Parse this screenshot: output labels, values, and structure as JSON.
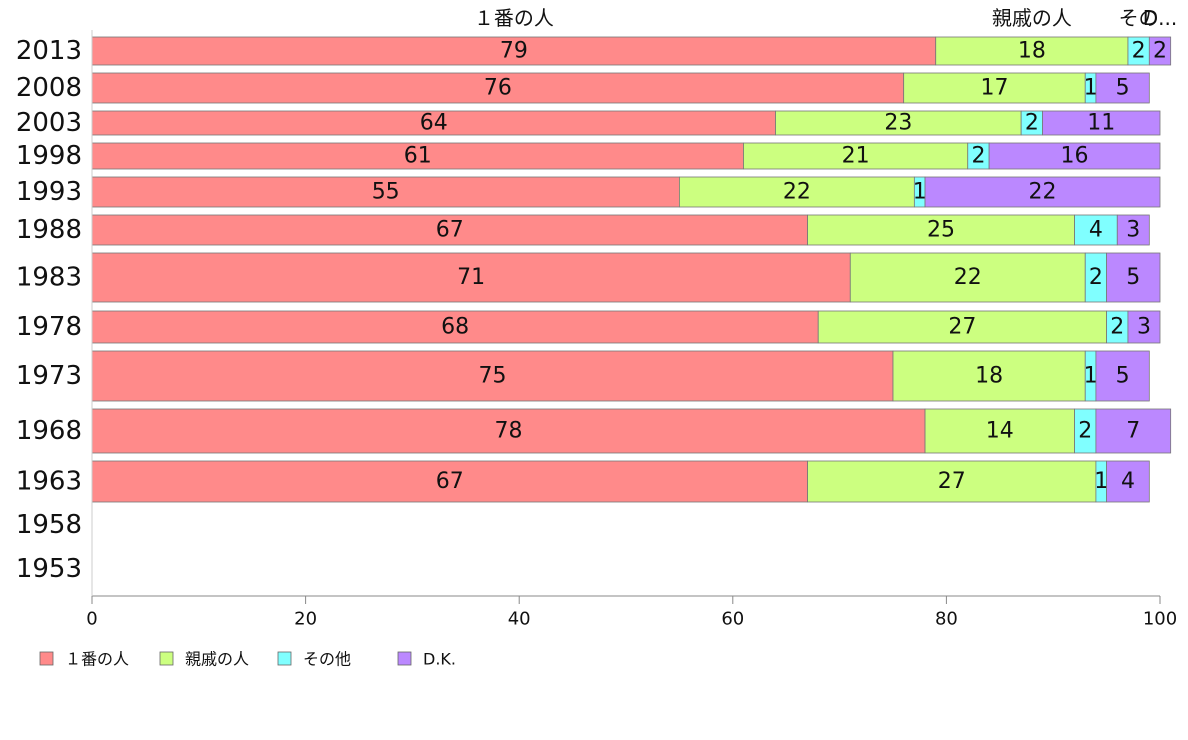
{
  "chart_data": {
    "type": "bar",
    "orientation": "horizontal",
    "stacked": true,
    "categories": [
      "2013",
      "2008",
      "2003",
      "1998",
      "1993",
      "1988",
      "1983",
      "1978",
      "1973",
      "1968",
      "1963",
      "1958",
      "1953"
    ],
    "series": [
      {
        "name": "１番の人",
        "color": "#ff8a8a",
        "values": [
          79,
          76,
          64,
          61,
          55,
          67,
          71,
          68,
          75,
          78,
          67,
          null,
          null
        ]
      },
      {
        "name": "親戚の人",
        "color": "#ccff80",
        "values": [
          18,
          17,
          23,
          21,
          22,
          25,
          22,
          27,
          18,
          14,
          27,
          null,
          null
        ]
      },
      {
        "name": "その他",
        "color": "#80ffff",
        "values": [
          2,
          1,
          2,
          2,
          1,
          4,
          2,
          2,
          1,
          2,
          1,
          null,
          null
        ]
      },
      {
        "name": "D.K.",
        "color": "#bb88ff",
        "values": [
          2,
          5,
          11,
          16,
          22,
          3,
          5,
          3,
          5,
          7,
          4,
          null,
          null
        ]
      }
    ],
    "top_labels": [
      "１番の人",
      "親戚の人",
      "その",
      "D..."
    ],
    "xlim": [
      0,
      100
    ],
    "xticks": [
      0,
      20,
      40,
      60,
      80,
      100
    ],
    "grid": false,
    "legend_position": "bottom-left"
  }
}
